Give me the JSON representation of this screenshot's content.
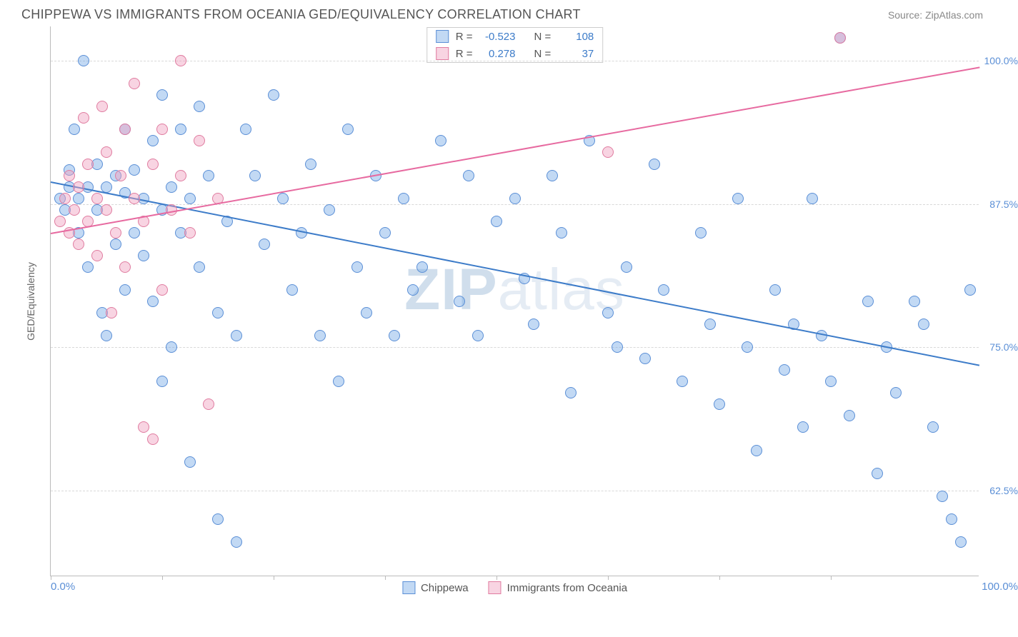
{
  "title": "CHIPPEWA VS IMMIGRANTS FROM OCEANIA GED/EQUIVALENCY CORRELATION CHART",
  "source": "Source: ZipAtlas.com",
  "y_axis_label": "GED/Equivalency",
  "watermark_bold": "ZIP",
  "watermark_rest": "atlas",
  "x_axis": {
    "min_label": "0.0%",
    "max_label": "100.0%",
    "min": 0,
    "max": 100,
    "tick_positions": [
      0,
      12,
      24,
      36,
      48,
      60,
      72,
      84
    ]
  },
  "y_axis": {
    "min": 55,
    "max": 103,
    "gridlines": [
      {
        "value": 100.0,
        "label": "100.0%"
      },
      {
        "value": 87.5,
        "label": "87.5%"
      },
      {
        "value": 75.0,
        "label": "75.0%"
      },
      {
        "value": 62.5,
        "label": "62.5%"
      }
    ]
  },
  "series": [
    {
      "name": "Chippewa",
      "class": "b",
      "color": "#5b8fd6",
      "stats": {
        "r": "-0.523",
        "n": "108"
      },
      "trend": {
        "x1": 0,
        "y1": 89.5,
        "x2": 100,
        "y2": 73.5
      },
      "points": [
        [
          1,
          88
        ],
        [
          1.5,
          87
        ],
        [
          2,
          89
        ],
        [
          2,
          90.5
        ],
        [
          2.5,
          94
        ],
        [
          3,
          88
        ],
        [
          3,
          85
        ],
        [
          3.5,
          100
        ],
        [
          4,
          89
        ],
        [
          4,
          82
        ],
        [
          5,
          91
        ],
        [
          5,
          87
        ],
        [
          5.5,
          78
        ],
        [
          6,
          89
        ],
        [
          6,
          76
        ],
        [
          7,
          90
        ],
        [
          7,
          84
        ],
        [
          8,
          94
        ],
        [
          8,
          88.5
        ],
        [
          8,
          80
        ],
        [
          9,
          90.5
        ],
        [
          9,
          85
        ],
        [
          10,
          88
        ],
        [
          10,
          83
        ],
        [
          11,
          93
        ],
        [
          11,
          79
        ],
        [
          12,
          97
        ],
        [
          12,
          87
        ],
        [
          12,
          72
        ],
        [
          13,
          89
        ],
        [
          13,
          75
        ],
        [
          14,
          94
        ],
        [
          14,
          85
        ],
        [
          15,
          65
        ],
        [
          15,
          88
        ],
        [
          16,
          96
        ],
        [
          16,
          82
        ],
        [
          17,
          90
        ],
        [
          18,
          78
        ],
        [
          18,
          60
        ],
        [
          19,
          86
        ],
        [
          20,
          76
        ],
        [
          20,
          58
        ],
        [
          21,
          94
        ],
        [
          22,
          90
        ],
        [
          23,
          84
        ],
        [
          24,
          97
        ],
        [
          25,
          88
        ],
        [
          26,
          80
        ],
        [
          27,
          85
        ],
        [
          28,
          91
        ],
        [
          29,
          76
        ],
        [
          30,
          87
        ],
        [
          31,
          72
        ],
        [
          32,
          94
        ],
        [
          33,
          82
        ],
        [
          34,
          78
        ],
        [
          35,
          90
        ],
        [
          36,
          85
        ],
        [
          37,
          76
        ],
        [
          38,
          88
        ],
        [
          39,
          80
        ],
        [
          40,
          82
        ],
        [
          42,
          93
        ],
        [
          44,
          79
        ],
        [
          45,
          90
        ],
        [
          46,
          76
        ],
        [
          48,
          86
        ],
        [
          50,
          88
        ],
        [
          51,
          81
        ],
        [
          52,
          77
        ],
        [
          54,
          90
        ],
        [
          55,
          85
        ],
        [
          56,
          71
        ],
        [
          58,
          93
        ],
        [
          60,
          78
        ],
        [
          61,
          75
        ],
        [
          62,
          82
        ],
        [
          64,
          74
        ],
        [
          65,
          91
        ],
        [
          66,
          80
        ],
        [
          68,
          72
        ],
        [
          70,
          85
        ],
        [
          71,
          77
        ],
        [
          72,
          70
        ],
        [
          74,
          88
        ],
        [
          75,
          75
        ],
        [
          76,
          66
        ],
        [
          78,
          80
        ],
        [
          79,
          73
        ],
        [
          80,
          77
        ],
        [
          81,
          68
        ],
        [
          82,
          88
        ],
        [
          83,
          76
        ],
        [
          84,
          72
        ],
        [
          85,
          102
        ],
        [
          86,
          69
        ],
        [
          88,
          79
        ],
        [
          89,
          64
        ],
        [
          90,
          75
        ],
        [
          91,
          71
        ],
        [
          93,
          79
        ],
        [
          94,
          77
        ],
        [
          95,
          68
        ],
        [
          96,
          62
        ],
        [
          97,
          60
        ],
        [
          98,
          58
        ],
        [
          99,
          80
        ]
      ]
    },
    {
      "name": "Immigrants from Oceania",
      "class": "p",
      "color": "#e07ca0",
      "stats": {
        "r": "0.278",
        "n": "37"
      },
      "trend": {
        "x1": 0,
        "y1": 85.0,
        "x2": 100,
        "y2": 99.5
      },
      "points": [
        [
          1,
          86
        ],
        [
          1.5,
          88
        ],
        [
          2,
          85
        ],
        [
          2,
          90
        ],
        [
          2.5,
          87
        ],
        [
          3,
          89
        ],
        [
          3,
          84
        ],
        [
          3.5,
          95
        ],
        [
          4,
          86
        ],
        [
          4,
          91
        ],
        [
          5,
          88
        ],
        [
          5,
          83
        ],
        [
          5.5,
          96
        ],
        [
          6,
          87
        ],
        [
          6,
          92
        ],
        [
          6.5,
          78
        ],
        [
          7,
          85
        ],
        [
          7.5,
          90
        ],
        [
          8,
          94
        ],
        [
          8,
          82
        ],
        [
          9,
          88
        ],
        [
          9,
          98
        ],
        [
          10,
          86
        ],
        [
          10,
          68
        ],
        [
          11,
          91
        ],
        [
          11,
          67
        ],
        [
          12,
          80
        ],
        [
          12,
          94
        ],
        [
          13,
          87
        ],
        [
          14,
          90
        ],
        [
          14,
          100
        ],
        [
          15,
          85
        ],
        [
          16,
          93
        ],
        [
          17,
          70
        ],
        [
          18,
          88
        ],
        [
          60,
          92
        ],
        [
          85,
          102
        ]
      ]
    }
  ],
  "stats_labels": {
    "r_prefix": "R =",
    "n_prefix": "N ="
  },
  "legend_bottom": [
    {
      "label": "Chippewa",
      "class": "blue"
    },
    {
      "label": "Immigrants from Oceania",
      "class": "pink"
    }
  ]
}
